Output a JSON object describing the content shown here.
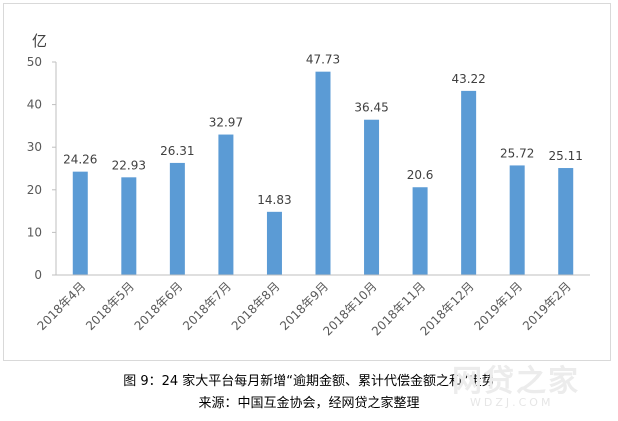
{
  "chart_data": {
    "type": "bar",
    "unit_label": "亿",
    "categories": [
      "2018年4月",
      "2018年5月",
      "2018年6月",
      "2018年7月",
      "2018年8月",
      "2018年9月",
      "2018年10月",
      "2018年11月",
      "2018年12月",
      "2019年1月",
      "2019年2月"
    ],
    "values": [
      24.26,
      22.93,
      26.31,
      32.97,
      14.83,
      47.73,
      36.45,
      20.6,
      43.22,
      25.72,
      25.11
    ],
    "value_labels": [
      "24.26",
      "22.93",
      "26.31",
      "32.97",
      "14.83",
      "47.73",
      "36.45",
      "20.6",
      "43.22",
      "25.72",
      "25.11"
    ],
    "ylim": [
      0,
      50
    ],
    "yticks": [
      "0",
      "10",
      "20",
      "30",
      "40",
      "50"
    ],
    "bar_color": "#5b9bd5",
    "grid": false
  },
  "caption": {
    "title": "图 9：24 家大平台每月新增“逾期金额、累计代偿金额之和”走势",
    "source": "来源：中国互金协会，经网贷之家整理"
  },
  "watermark": {
    "logo_text": "网贷之家",
    "url_text": "WDZJ.COM"
  }
}
